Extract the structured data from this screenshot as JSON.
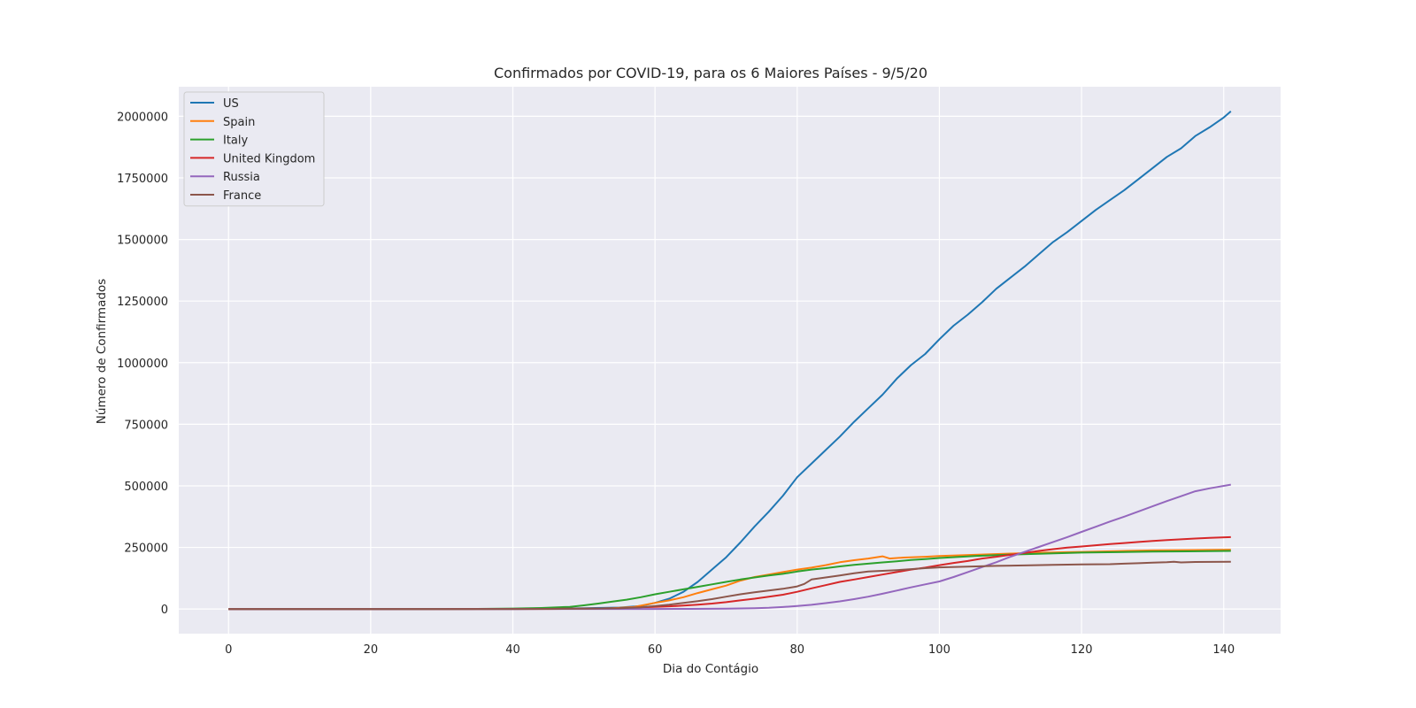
{
  "chart_data": {
    "type": "line",
    "title": "Confirmados por COVID-19, para os 6 Maiores Países - 9/5/20",
    "xlabel": "Dia do Contágio",
    "ylabel": "Número de Confirmados",
    "xlim": [
      -7,
      148
    ],
    "ylim": [
      -100000,
      2120000
    ],
    "xticks": [
      0,
      20,
      40,
      60,
      80,
      100,
      120,
      140
    ],
    "yticks": [
      0,
      250000,
      500000,
      750000,
      1000000,
      1250000,
      1500000,
      1750000,
      2000000
    ],
    "grid": true,
    "legend_position": "top-left",
    "series": [
      {
        "name": "US",
        "color": "#1f77b4",
        "points": [
          [
            0,
            1
          ],
          [
            20,
            15
          ],
          [
            35,
            70
          ],
          [
            40,
            400
          ],
          [
            45,
            1000
          ],
          [
            50,
            3500
          ],
          [
            55,
            6000
          ],
          [
            58,
            12000
          ],
          [
            60,
            25000
          ],
          [
            62,
            42000
          ],
          [
            64,
            70000
          ],
          [
            66,
            110000
          ],
          [
            68,
            160000
          ],
          [
            70,
            210000
          ],
          [
            72,
            270000
          ],
          [
            74,
            335000
          ],
          [
            76,
            395000
          ],
          [
            78,
            460000
          ],
          [
            80,
            535000
          ],
          [
            82,
            590000
          ],
          [
            84,
            645000
          ],
          [
            86,
            700000
          ],
          [
            88,
            760000
          ],
          [
            90,
            815000
          ],
          [
            92,
            870000
          ],
          [
            94,
            935000
          ],
          [
            96,
            990000
          ],
          [
            98,
            1035000
          ],
          [
            100,
            1095000
          ],
          [
            102,
            1150000
          ],
          [
            104,
            1195000
          ],
          [
            106,
            1245000
          ],
          [
            108,
            1300000
          ],
          [
            110,
            1345000
          ],
          [
            112,
            1390000
          ],
          [
            114,
            1440000
          ],
          [
            116,
            1490000
          ],
          [
            118,
            1530000
          ],
          [
            120,
            1575000
          ],
          [
            122,
            1620000
          ],
          [
            124,
            1660000
          ],
          [
            126,
            1700000
          ],
          [
            128,
            1745000
          ],
          [
            130,
            1790000
          ],
          [
            132,
            1835000
          ],
          [
            134,
            1870000
          ],
          [
            136,
            1920000
          ],
          [
            138,
            1955000
          ],
          [
            140,
            1995000
          ],
          [
            141,
            2020000
          ]
        ]
      },
      {
        "name": "Spain",
        "color": "#ff7f0e",
        "points": [
          [
            0,
            0
          ],
          [
            30,
            0
          ],
          [
            40,
            100
          ],
          [
            45,
            300
          ],
          [
            50,
            1000
          ],
          [
            54,
            3000
          ],
          [
            57,
            8000
          ],
          [
            60,
            25000
          ],
          [
            62,
            35000
          ],
          [
            64,
            48000
          ],
          [
            66,
            65000
          ],
          [
            68,
            80000
          ],
          [
            70,
            95000
          ],
          [
            72,
            115000
          ],
          [
            74,
            130000
          ],
          [
            76,
            140000
          ],
          [
            78,
            150000
          ],
          [
            80,
            160000
          ],
          [
            82,
            168000
          ],
          [
            84,
            178000
          ],
          [
            86,
            190000
          ],
          [
            88,
            198000
          ],
          [
            90,
            205000
          ],
          [
            92,
            214000
          ],
          [
            93,
            205000
          ],
          [
            95,
            209000
          ],
          [
            98,
            212000
          ],
          [
            100,
            215000
          ],
          [
            105,
            220000
          ],
          [
            110,
            225000
          ],
          [
            115,
            229000
          ],
          [
            120,
            232000
          ],
          [
            125,
            235000
          ],
          [
            130,
            238000
          ],
          [
            135,
            239000
          ],
          [
            141,
            241000
          ]
        ]
      },
      {
        "name": "Italy",
        "color": "#2ca02c",
        "points": [
          [
            0,
            0
          ],
          [
            25,
            0
          ],
          [
            35,
            500
          ],
          [
            40,
            2000
          ],
          [
            44,
            4000
          ],
          [
            48,
            9000
          ],
          [
            50,
            15000
          ],
          [
            52,
            22000
          ],
          [
            54,
            30000
          ],
          [
            56,
            38000
          ],
          [
            58,
            48000
          ],
          [
            60,
            60000
          ],
          [
            62,
            70000
          ],
          [
            64,
            80000
          ],
          [
            66,
            90000
          ],
          [
            68,
            100000
          ],
          [
            70,
            110000
          ],
          [
            72,
            120000
          ],
          [
            74,
            128000
          ],
          [
            76,
            136000
          ],
          [
            78,
            143000
          ],
          [
            80,
            152000
          ],
          [
            82,
            160000
          ],
          [
            84,
            166000
          ],
          [
            86,
            173000
          ],
          [
            88,
            179000
          ],
          [
            90,
            184000
          ],
          [
            92,
            189000
          ],
          [
            94,
            194000
          ],
          [
            96,
            199000
          ],
          [
            98,
            203000
          ],
          [
            100,
            207000
          ],
          [
            105,
            215000
          ],
          [
            110,
            221000
          ],
          [
            115,
            225000
          ],
          [
            120,
            229000
          ],
          [
            125,
            231000
          ],
          [
            130,
            233000
          ],
          [
            135,
            234000
          ],
          [
            141,
            236000
          ]
        ]
      },
      {
        "name": "United Kingdom",
        "color": "#d62728",
        "points": [
          [
            0,
            0
          ],
          [
            30,
            0
          ],
          [
            45,
            500
          ],
          [
            50,
            1500
          ],
          [
            55,
            3500
          ],
          [
            58,
            7000
          ],
          [
            60,
            9000
          ],
          [
            62,
            11000
          ],
          [
            64,
            14000
          ],
          [
            66,
            18000
          ],
          [
            68,
            22000
          ],
          [
            70,
            28000
          ],
          [
            72,
            35000
          ],
          [
            74,
            42000
          ],
          [
            76,
            50000
          ],
          [
            78,
            58000
          ],
          [
            80,
            70000
          ],
          [
            82,
            84000
          ],
          [
            84,
            97000
          ],
          [
            86,
            110000
          ],
          [
            88,
            120000
          ],
          [
            90,
            130000
          ],
          [
            92,
            140000
          ],
          [
            94,
            150000
          ],
          [
            96,
            160000
          ],
          [
            98,
            168000
          ],
          [
            100,
            178000
          ],
          [
            102,
            187000
          ],
          [
            104,
            195000
          ],
          [
            106,
            205000
          ],
          [
            108,
            212000
          ],
          [
            110,
            220000
          ],
          [
            112,
            228000
          ],
          [
            114,
            236000
          ],
          [
            116,
            243000
          ],
          [
            118,
            249000
          ],
          [
            120,
            254000
          ],
          [
            122,
            259000
          ],
          [
            124,
            264000
          ],
          [
            126,
            268000
          ],
          [
            128,
            272000
          ],
          [
            130,
            276000
          ],
          [
            132,
            280000
          ],
          [
            134,
            283000
          ],
          [
            136,
            286000
          ],
          [
            138,
            289000
          ],
          [
            141,
            292000
          ]
        ]
      },
      {
        "name": "Russia",
        "color": "#9467bd",
        "points": [
          [
            0,
            0
          ],
          [
            40,
            0
          ],
          [
            55,
            100
          ],
          [
            60,
            200
          ],
          [
            65,
            500
          ],
          [
            70,
            1500
          ],
          [
            74,
            3000
          ],
          [
            76,
            5000
          ],
          [
            78,
            8000
          ],
          [
            80,
            12000
          ],
          [
            82,
            17000
          ],
          [
            84,
            24000
          ],
          [
            86,
            31000
          ],
          [
            88,
            40000
          ],
          [
            90,
            50000
          ],
          [
            92,
            62000
          ],
          [
            94,
            75000
          ],
          [
            96,
            88000
          ],
          [
            98,
            100000
          ],
          [
            100,
            112000
          ],
          [
            102,
            130000
          ],
          [
            104,
            150000
          ],
          [
            106,
            170000
          ],
          [
            108,
            190000
          ],
          [
            110,
            212000
          ],
          [
            112,
            232000
          ],
          [
            114,
            252000
          ],
          [
            116,
            272000
          ],
          [
            118,
            292000
          ],
          [
            120,
            313000
          ],
          [
            122,
            334000
          ],
          [
            124,
            355000
          ],
          [
            126,
            375000
          ],
          [
            128,
            396000
          ],
          [
            130,
            417000
          ],
          [
            132,
            438000
          ],
          [
            134,
            458000
          ],
          [
            136,
            478000
          ],
          [
            138,
            490000
          ],
          [
            141,
            505000
          ]
        ]
      },
      {
        "name": "France",
        "color": "#8c564b",
        "points": [
          [
            0,
            0
          ],
          [
            30,
            0
          ],
          [
            40,
            200
          ],
          [
            45,
            500
          ],
          [
            50,
            1200
          ],
          [
            55,
            3000
          ],
          [
            58,
            7000
          ],
          [
            60,
            12000
          ],
          [
            62,
            18000
          ],
          [
            64,
            25000
          ],
          [
            66,
            32000
          ],
          [
            68,
            40000
          ],
          [
            70,
            50000
          ],
          [
            72,
            60000
          ],
          [
            74,
            68000
          ],
          [
            76,
            75000
          ],
          [
            78,
            82000
          ],
          [
            80,
            92000
          ],
          [
            81,
            102000
          ],
          [
            82,
            120000
          ],
          [
            84,
            128000
          ],
          [
            86,
            136000
          ],
          [
            88,
            145000
          ],
          [
            90,
            152000
          ],
          [
            92,
            155000
          ],
          [
            94,
            158000
          ],
          [
            96,
            162000
          ],
          [
            98,
            166000
          ],
          [
            100,
            169000
          ],
          [
            104,
            172000
          ],
          [
            108,
            175000
          ],
          [
            112,
            177000
          ],
          [
            116,
            179000
          ],
          [
            120,
            181000
          ],
          [
            124,
            182000
          ],
          [
            126,
            184000
          ],
          [
            128,
            186000
          ],
          [
            130,
            188000
          ],
          [
            132,
            190000
          ],
          [
            133,
            192000
          ],
          [
            134,
            189000
          ],
          [
            136,
            191000
          ],
          [
            141,
            192000
          ]
        ]
      }
    ]
  }
}
